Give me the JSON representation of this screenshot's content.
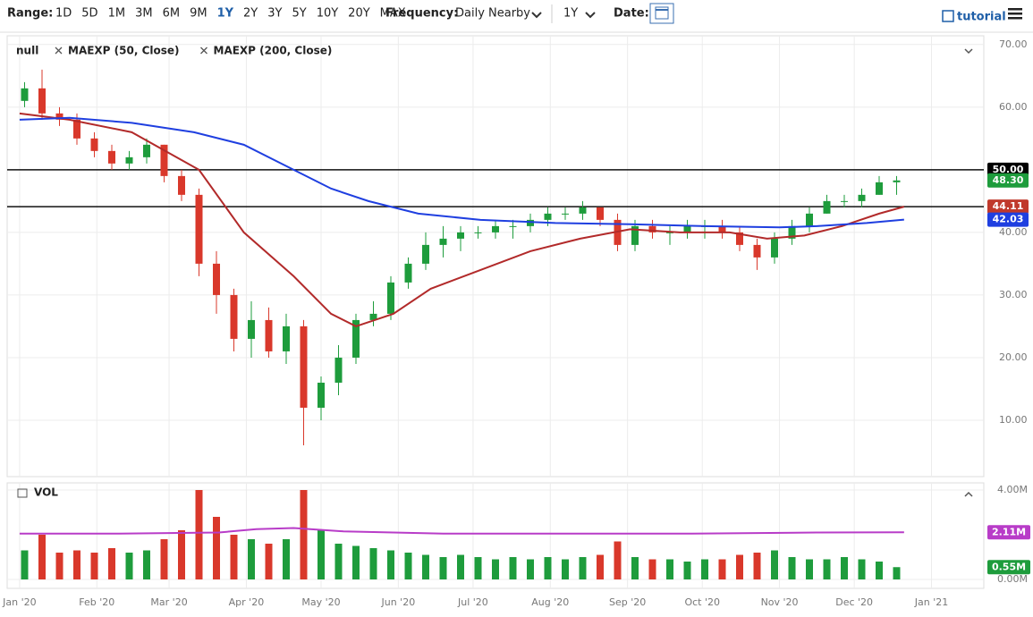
{
  "toolbar": {
    "range_label": "Range:",
    "ranges": [
      "1D",
      "5D",
      "1M",
      "3M",
      "6M",
      "9M",
      "1Y",
      "2Y",
      "3Y",
      "5Y",
      "10Y",
      "20Y",
      "MAX"
    ],
    "selected_range": 6,
    "frequency_label": "Frequency:",
    "frequency": "Daily Nearby",
    "period": "1Y",
    "date_label": "Date:",
    "tutorial": "tutorial"
  },
  "chart_data": [
    {
      "type": "candlestick",
      "name": "null",
      "up_color": "#1e9c3c",
      "down_color": "#d9382b",
      "x": [
        2,
        9,
        16,
        23,
        30,
        37,
        44,
        51,
        58,
        65,
        72,
        79,
        86,
        93,
        100,
        107,
        114,
        121,
        128,
        135,
        142,
        149,
        156,
        163,
        170,
        177,
        184,
        191,
        198,
        205,
        212,
        219,
        226,
        233,
        240,
        247,
        254,
        261,
        268,
        275,
        282,
        289,
        296,
        303,
        310,
        317,
        324,
        331,
        338,
        345,
        352
      ],
      "open": [
        61,
        63,
        59,
        58,
        55,
        53,
        51,
        52,
        54,
        49,
        46,
        35,
        30,
        23,
        26,
        21,
        25,
        12,
        16,
        20,
        26,
        27,
        32,
        35,
        38,
        39,
        40,
        40,
        41,
        41,
        42,
        43,
        43,
        44,
        42,
        38,
        41,
        40,
        40,
        41,
        41,
        40,
        38,
        36,
        39,
        41,
        43,
        45,
        45,
        46,
        48
      ],
      "high": [
        64,
        66,
        60,
        59,
        56,
        54,
        53,
        55,
        54,
        50,
        47,
        37,
        31,
        29,
        28,
        27,
        26,
        17,
        22,
        27,
        29,
        33,
        36,
        40,
        41,
        41,
        41,
        42,
        42,
        43,
        44,
        44,
        45,
        44,
        43,
        42,
        42,
        41,
        42,
        42,
        42,
        41,
        39,
        40,
        42,
        44,
        46,
        46,
        47,
        49,
        49
      ],
      "low": [
        60,
        58,
        57,
        54,
        52,
        50,
        50,
        51,
        48,
        45,
        33,
        27,
        21,
        20,
        20,
        19,
        6,
        10,
        14,
        19,
        25,
        26,
        31,
        34,
        36,
        37,
        39,
        39,
        39,
        40,
        41,
        42,
        42,
        41,
        37,
        37,
        39,
        38,
        39,
        39,
        39,
        37,
        34,
        35,
        38,
        40,
        43,
        44,
        44,
        46,
        46
      ],
      "close": [
        63,
        59,
        58,
        55,
        53,
        51,
        52,
        54,
        49,
        46,
        35,
        30,
        23,
        26,
        21,
        25,
        12,
        16,
        20,
        26,
        27,
        32,
        35,
        38,
        39,
        40,
        40,
        41,
        41,
        42,
        43,
        43,
        44,
        42,
        38,
        41,
        40,
        40,
        41,
        41,
        40,
        38,
        36,
        39,
        41,
        43,
        45,
        45,
        46,
        48,
        48.3
      ],
      "lines": [
        {
          "name": "MAEXP (50, Close)",
          "color": "#b22a2a",
          "x": [
            0,
            20,
            45,
            72,
            90,
            110,
            125,
            135,
            150,
            165,
            185,
            205,
            225,
            245,
            265,
            285,
            300,
            315,
            330,
            345,
            355
          ],
          "values": [
            59,
            58,
            56,
            50,
            40,
            33,
            27,
            25,
            27,
            31,
            34,
            37,
            39,
            40.5,
            40,
            40,
            39,
            39.5,
            41,
            43,
            44.11
          ]
        },
        {
          "name": "MAEXP (200, Close)",
          "color": "#1f3fe0",
          "x": [
            0,
            20,
            45,
            70,
            90,
            110,
            125,
            140,
            160,
            185,
            215,
            245,
            275,
            305,
            320,
            340,
            355
          ],
          "values": [
            58,
            58.3,
            57.5,
            56,
            54,
            50,
            47,
            45,
            43,
            42,
            41.5,
            41.3,
            41,
            40.8,
            41,
            41.5,
            42.03
          ]
        }
      ],
      "hlines": [
        50,
        44.11
      ],
      "price_tags": [
        {
          "value": 50,
          "label": "50.00",
          "color": "#000000"
        },
        {
          "value": 48.3,
          "label": "48.30",
          "color": "#1e9c3c"
        },
        {
          "value": 44.11,
          "label": "44.11",
          "color": "#c0392b"
        },
        {
          "value": 42.03,
          "label": "42.03",
          "color": "#1f3fe0"
        }
      ],
      "xlim": [
        -5,
        387
      ],
      "xticks": [
        {
          "value": 0,
          "label": "Jan '20"
        },
        {
          "value": 31,
          "label": "Feb '20"
        },
        {
          "value": 60,
          "label": "Mar '20"
        },
        {
          "value": 91,
          "label": "Apr '20"
        },
        {
          "value": 121,
          "label": "May '20"
        },
        {
          "value": 152,
          "label": "Jun '20"
        },
        {
          "value": 182,
          "label": "Jul '20"
        },
        {
          "value": 213,
          "label": "Aug '20"
        },
        {
          "value": 244,
          "label": "Sep '20"
        },
        {
          "value": 274,
          "label": "Oct '20"
        },
        {
          "value": 305,
          "label": "Nov '20"
        },
        {
          "value": 335,
          "label": "Dec '20"
        },
        {
          "value": 366,
          "label": "Jan '21"
        }
      ],
      "ylim": [
        1,
        71.4
      ],
      "yticks": [
        {
          "value": 10,
          "label": "10.00"
        },
        {
          "value": 20,
          "label": "20.00"
        },
        {
          "value": 30,
          "label": "30.00"
        },
        {
          "value": 40,
          "label": "40.00"
        },
        {
          "value": 50,
          "label": "50.00"
        },
        {
          "value": 60,
          "label": "60.00"
        },
        {
          "value": 70,
          "label": "70.00"
        }
      ]
    },
    {
      "type": "bar",
      "name": "VOL",
      "x": [
        2,
        9,
        16,
        23,
        30,
        37,
        44,
        51,
        58,
        65,
        72,
        79,
        86,
        93,
        100,
        107,
        114,
        121,
        128,
        135,
        142,
        149,
        156,
        163,
        170,
        177,
        184,
        191,
        198,
        205,
        212,
        219,
        226,
        233,
        240,
        247,
        254,
        261,
        268,
        275,
        282,
        289,
        296,
        303,
        310,
        317,
        324,
        331,
        338,
        345,
        352
      ],
      "values": [
        1.3,
        2.0,
        1.2,
        1.3,
        1.2,
        1.4,
        1.2,
        1.3,
        1.8,
        2.2,
        4.0,
        2.8,
        2.0,
        1.8,
        1.6,
        1.8,
        4.0,
        2.2,
        1.6,
        1.5,
        1.4,
        1.3,
        1.2,
        1.1,
        1.0,
        1.1,
        1.0,
        0.9,
        1.0,
        0.9,
        1.0,
        0.9,
        1.0,
        1.1,
        1.7,
        1.0,
        0.9,
        0.9,
        0.8,
        0.9,
        0.9,
        1.1,
        1.2,
        1.3,
        1.0,
        0.9,
        0.9,
        1.0,
        0.9,
        0.8,
        0.55
      ],
      "ma": {
        "color": "#b83cc8",
        "x": [
          0,
          40,
          80,
          95,
          110,
          130,
          170,
          220,
          270,
          320,
          355
        ],
        "values": [
          2.05,
          2.05,
          2.1,
          2.25,
          2.3,
          2.15,
          2.05,
          2.05,
          2.05,
          2.1,
          2.11
        ]
      },
      "tags": [
        {
          "value": 2.11,
          "label": "2.11M",
          "color": "#b83cc8"
        },
        {
          "value": 0.55,
          "label": "0.55M",
          "color": "#1e9c3c"
        }
      ],
      "xlim": [
        -5,
        387
      ],
      "ylim": [
        -0.4,
        4.32
      ],
      "yticks": [
        {
          "value": 0,
          "label": "0.00M"
        },
        {
          "value": 4,
          "label": "4.00M"
        }
      ]
    }
  ]
}
